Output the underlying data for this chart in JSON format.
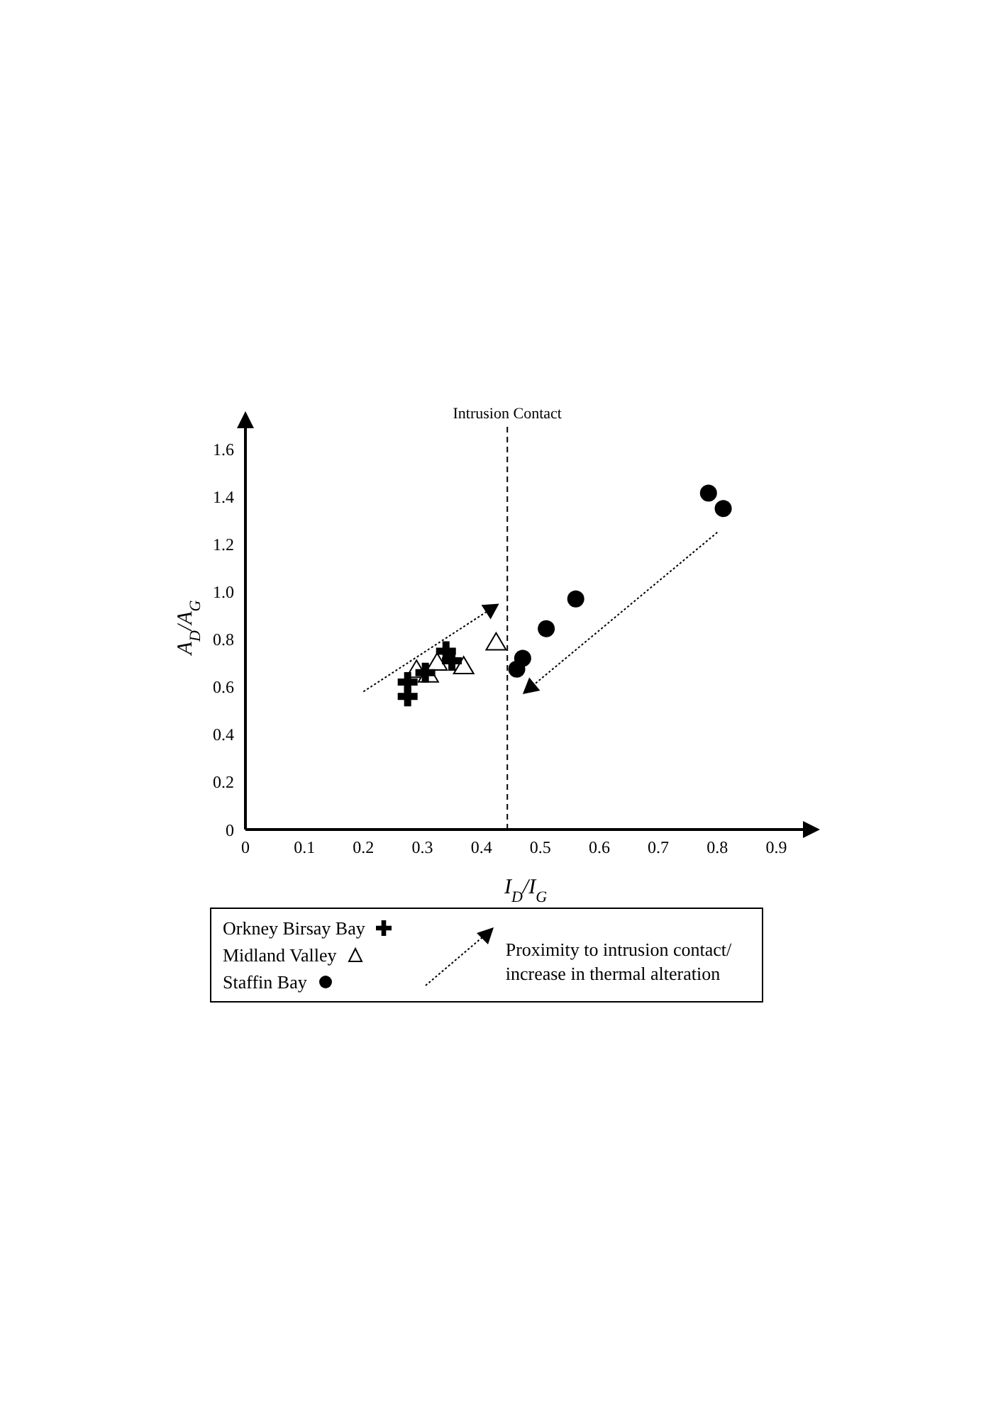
{
  "chart_data": {
    "type": "scatter",
    "xlabel": "I$_{D}$/I$_{G}$",
    "ylabel": "A$_{D}$/A$_{G}$",
    "xlim": [
      0,
      0.95
    ],
    "ylim": [
      0,
      1.7
    ],
    "xticks": [
      0,
      0.1,
      0.2,
      0.3,
      0.4,
      0.5,
      0.6,
      0.7,
      0.8,
      0.9
    ],
    "yticks": [
      0,
      0.2,
      0.4,
      0.6,
      0.8,
      {
        "value": 1,
        "label": "1.0"
      },
      1.2,
      1.4,
      1.6
    ],
    "grid": false,
    "legend": "bottom",
    "series": [
      {
        "name": "Orkney Birsay Bay",
        "color": "#000000",
        "marker": "cross",
        "x": [
          0.275,
          0.275,
          0.305,
          0.34,
          0.35
        ],
        "values": [
          0.56,
          0.62,
          0.66,
          0.75,
          0.71
        ]
      },
      {
        "name": "Midland Valley",
        "color": "#000000",
        "marker": "triangle",
        "x": [
          0.29,
          0.31,
          0.325,
          0.37,
          0.425
        ],
        "values": [
          0.67,
          0.65,
          0.7,
          0.685,
          0.785
        ]
      },
      {
        "name": "Staffin Bay",
        "color": "#000000",
        "marker": "circle",
        "x": [
          0.46,
          0.47,
          0.51,
          0.56,
          0.785,
          0.81
        ],
        "values": [
          0.675,
          0.72,
          0.845,
          0.97,
          1.415,
          1.35
        ]
      }
    ],
    "ref_lines": [
      {
        "axis": "x",
        "value": 0.444,
        "label": "Intrusion Contact",
        "line_style": "dashed",
        "color": "#000000"
      }
    ],
    "annotations": [
      "Proximity to intrusion contact/ increase in thermal alteration"
    ]
  }
}
